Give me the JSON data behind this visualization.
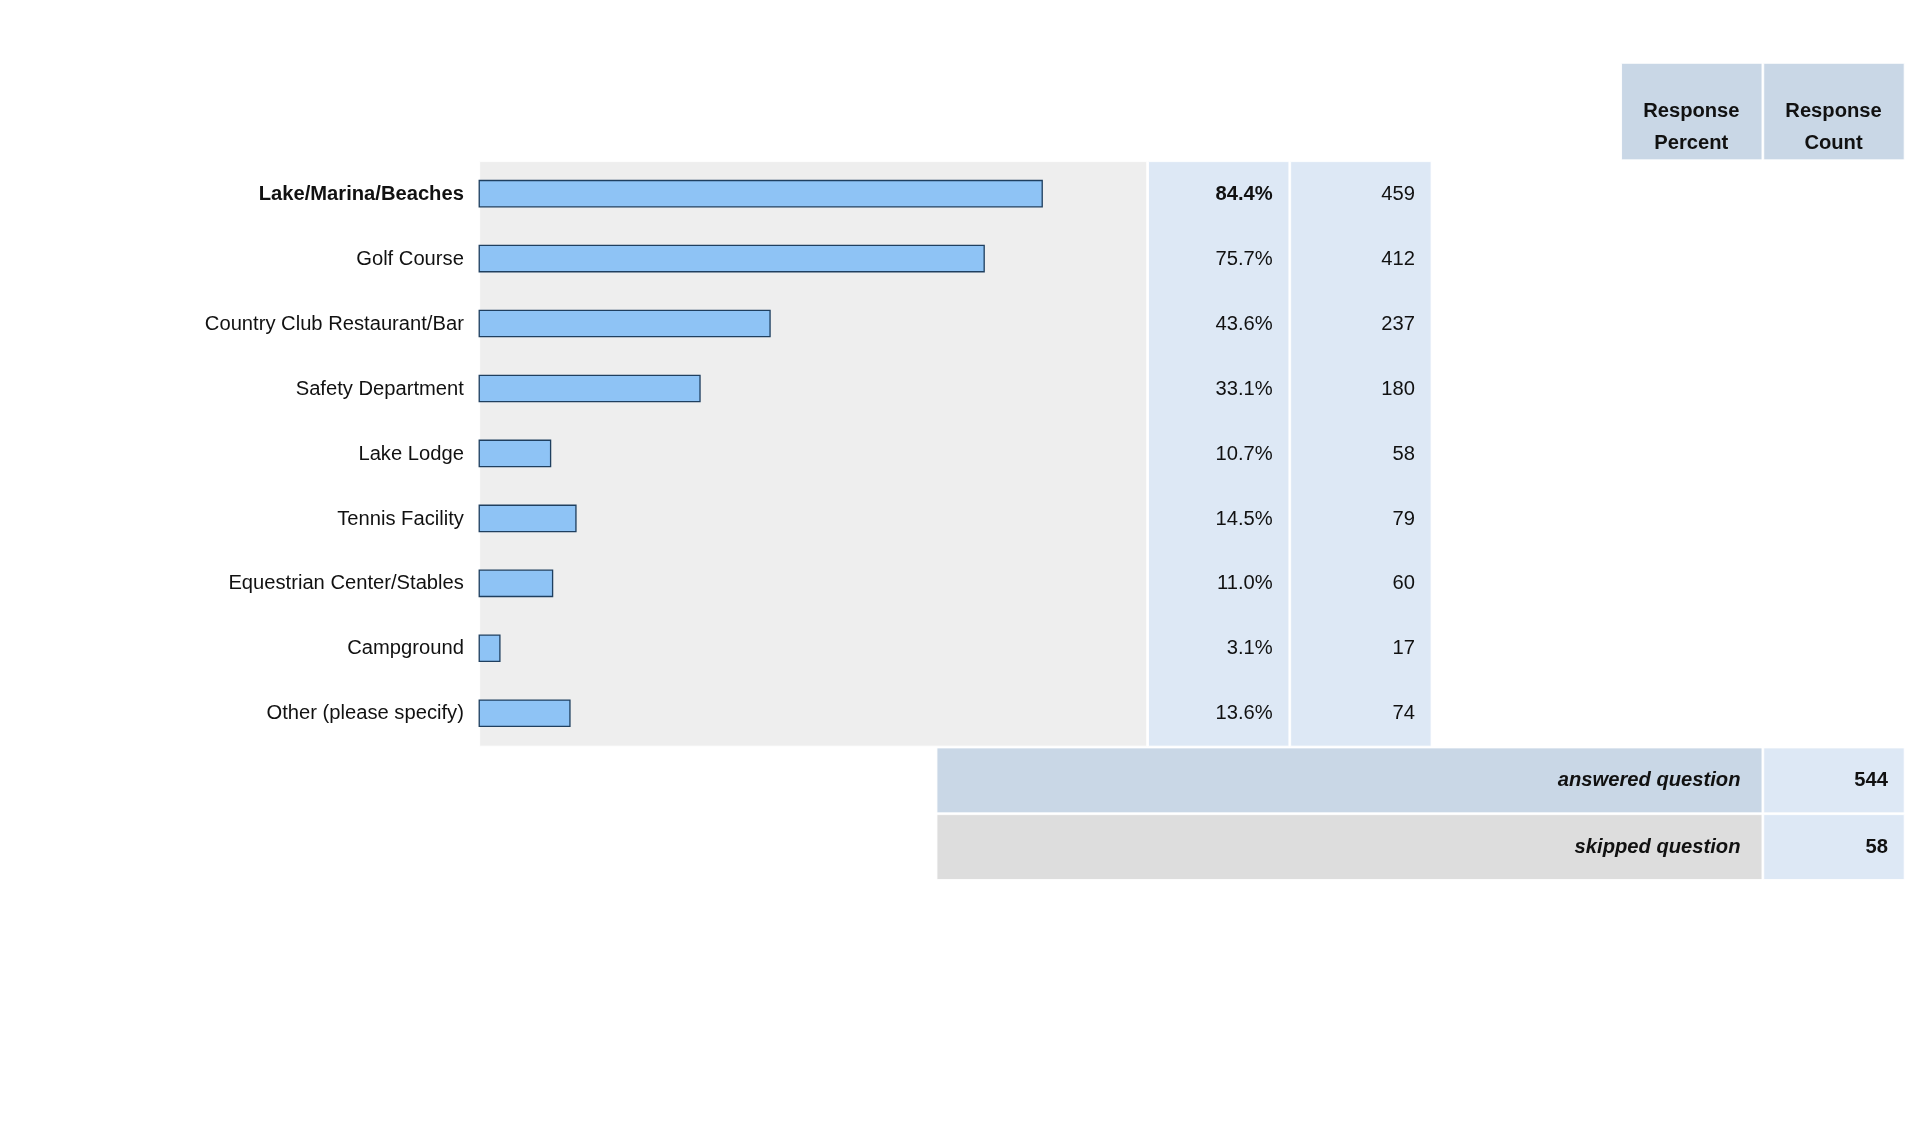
{
  "chart_data": {
    "type": "bar",
    "orientation": "horizontal",
    "categories": [
      "Lake/Marina/Beaches",
      "Golf Course",
      "Country Club Restaurant/Bar",
      "Safety Department",
      "Lake Lodge",
      "Tennis Facility",
      "Equestrian Center/Stables",
      "Campground",
      "Other (please specify)"
    ],
    "values": [
      84.4,
      75.7,
      43.6,
      33.1,
      10.7,
      14.5,
      11.0,
      3.1,
      13.6
    ],
    "value_labels": [
      "84.4%",
      "75.7%",
      "43.6%",
      "33.1%",
      "10.7%",
      "14.5%",
      "11.0%",
      "3.1%",
      "13.6%"
    ],
    "color": "#8ec3f5",
    "xlim": [
      0,
      100
    ],
    "grid": false,
    "annotations": [
      "Response Percent",
      "Response Count",
      "459",
      "412",
      "237",
      "180",
      "58",
      "79",
      "60",
      "17",
      "74",
      "answered question",
      "544",
      "skipped question",
      "58"
    ]
  }
}
